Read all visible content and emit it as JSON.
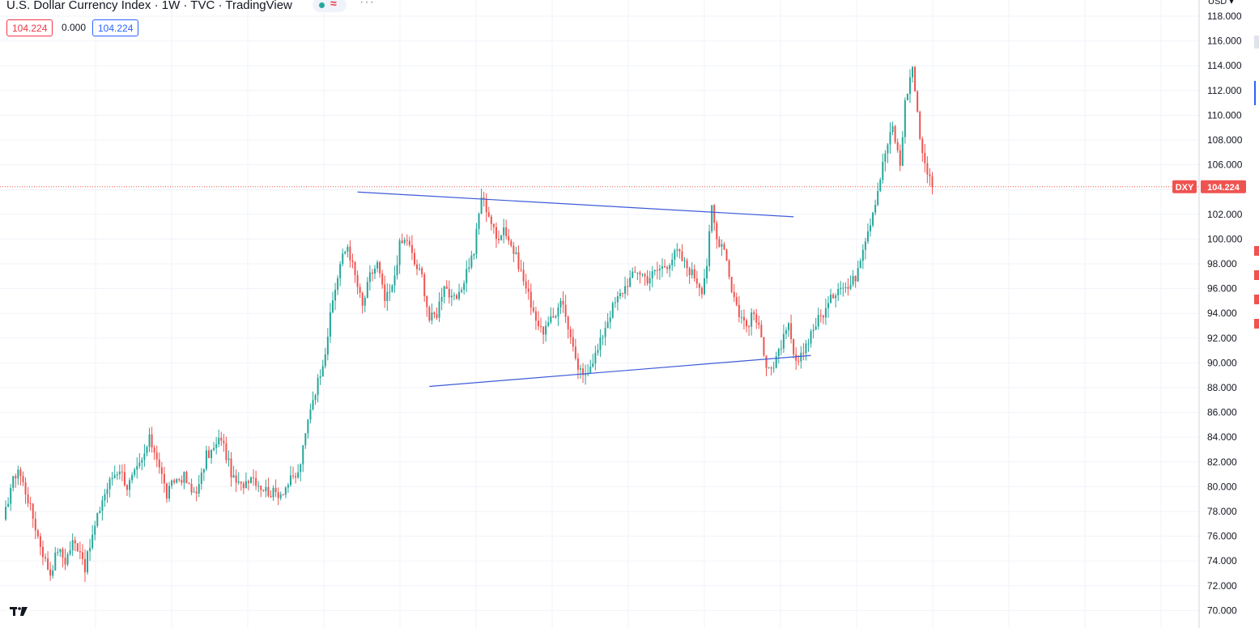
{
  "header": {
    "title": "U.S. Dollar Currency Index · 1W · TVC · TradingView",
    "status_icon": "≈",
    "more_icon": "···",
    "ohlc_values": [
      "104.224",
      "0.000",
      "104.224"
    ]
  },
  "axis": {
    "currency": "USD",
    "ticks": [
      "118.000",
      "116.000",
      "114.000",
      "112.000",
      "110.000",
      "108.000",
      "106.000",
      "102.000",
      "100.000",
      "98.000",
      "96.000",
      "94.000",
      "92.000",
      "90.000",
      "88.000",
      "86.000",
      "84.000",
      "82.000",
      "80.000",
      "78.000",
      "76.000",
      "74.000",
      "72.000",
      "70.000"
    ]
  },
  "price_label": {
    "symbol": "DXY",
    "value": "104.224"
  },
  "colors": {
    "up": "#26a69a",
    "down": "#ef5350",
    "trendline": "#3d5bd9",
    "price_line": "#ef5350",
    "grid": "#f0f3fa"
  },
  "chart_data": {
    "type": "candlestick",
    "symbol": "DXY",
    "interval": "1W",
    "ylim": [
      69,
      119
    ],
    "last_price": 104.224,
    "price_path": [
      [
        0,
        77
      ],
      [
        3,
        80
      ],
      [
        6,
        81.5
      ],
      [
        10,
        79
      ],
      [
        14,
        76
      ],
      [
        17,
        74
      ],
      [
        19,
        73
      ],
      [
        22,
        75
      ],
      [
        25,
        74
      ],
      [
        28,
        75.5
      ],
      [
        31,
        75
      ],
      [
        33,
        73.5
      ],
      [
        36,
        76
      ],
      [
        40,
        79
      ],
      [
        44,
        80.8
      ],
      [
        47,
        81.5
      ],
      [
        50,
        80
      ],
      [
        53,
        81
      ],
      [
        56,
        82
      ],
      [
        59,
        83.8
      ],
      [
        62,
        82.5
      ],
      [
        66,
        79.3
      ],
      [
        69,
        80.5
      ],
      [
        73,
        80.8
      ],
      [
        76,
        79.5
      ],
      [
        79,
        80
      ],
      [
        82,
        82.5
      ],
      [
        85,
        83
      ],
      [
        88,
        84
      ],
      [
        90,
        82.5
      ],
      [
        93,
        80.5
      ],
      [
        96,
        80
      ],
      [
        100,
        81
      ],
      [
        104,
        80
      ],
      [
        108,
        79.5
      ],
      [
        112,
        79.5
      ],
      [
        116,
        80.5
      ],
      [
        119,
        81
      ],
      [
        121,
        83
      ],
      [
        124,
        86.5
      ],
      [
        127,
        88.5
      ],
      [
        130,
        91
      ],
      [
        133,
        95
      ],
      [
        136,
        98
      ],
      [
        139,
        99.5
      ],
      [
        142,
        97
      ],
      [
        145,
        94.5
      ],
      [
        148,
        97
      ],
      [
        151,
        98
      ],
      [
        154,
        95
      ],
      [
        157,
        96
      ],
      [
        160,
        99.5
      ],
      [
        163,
        100
      ],
      [
        166,
        98
      ],
      [
        169,
        97
      ],
      [
        172,
        93.5
      ],
      [
        175,
        94
      ],
      [
        178,
        96.5
      ],
      [
        181,
        95
      ],
      [
        184,
        95.3
      ],
      [
        187,
        97.5
      ],
      [
        190,
        99
      ],
      [
        193,
        103.5
      ],
      [
        196,
        102
      ],
      [
        199,
        100
      ],
      [
        202,
        101
      ],
      [
        205,
        99.5
      ],
      [
        208,
        98
      ],
      [
        211,
        96
      ],
      [
        214,
        94.3
      ],
      [
        217,
        92.5
      ],
      [
        220,
        93
      ],
      [
        223,
        94
      ],
      [
        225,
        95.3
      ],
      [
        228,
        93
      ],
      [
        231,
        90
      ],
      [
        234,
        88.8
      ],
      [
        237,
        90
      ],
      [
        240,
        91
      ],
      [
        243,
        93
      ],
      [
        246,
        94.5
      ],
      [
        249,
        95.5
      ],
      [
        252,
        96.5
      ],
      [
        256,
        97.5
      ],
      [
        260,
        96.8
      ],
      [
        264,
        97.5
      ],
      [
        268,
        98
      ],
      [
        272,
        99
      ],
      [
        275,
        98
      ],
      [
        279,
        97
      ],
      [
        282,
        96
      ],
      [
        284,
        98
      ],
      [
        286,
        102.5
      ],
      [
        288,
        100
      ],
      [
        291,
        99.5
      ],
      [
        294,
        96
      ],
      [
        297,
        94
      ],
      [
        300,
        93
      ],
      [
        303,
        94
      ],
      [
        306,
        92
      ],
      [
        308,
        90
      ],
      [
        311,
        89.5
      ],
      [
        314,
        91.5
      ],
      [
        317,
        92.8
      ],
      [
        319,
        90.5
      ],
      [
        321,
        89.8
      ],
      [
        323,
        91
      ],
      [
        326,
        92.5
      ],
      [
        329,
        93.5
      ],
      [
        332,
        94.3
      ],
      [
        335,
        95.5
      ],
      [
        338,
        96.5
      ],
      [
        341,
        96
      ],
      [
        344,
        97
      ],
      [
        347,
        99.5
      ],
      [
        350,
        101.5
      ],
      [
        353,
        104
      ],
      [
        356,
        107
      ],
      [
        359,
        109
      ],
      [
        362,
        106
      ],
      [
        364,
        111
      ],
      [
        367,
        114
      ],
      [
        369,
        110
      ],
      [
        371,
        107
      ],
      [
        373,
        105.5
      ],
      [
        375,
        104.224
      ]
    ],
    "trendlines": [
      {
        "from": {
          "week": 143,
          "price": 103.8
        },
        "to": {
          "week": 319,
          "price": 101.8
        }
      },
      {
        "from": {
          "week": 172,
          "price": 88.1
        },
        "to": {
          "week": 326,
          "price": 90.6
        }
      }
    ]
  }
}
